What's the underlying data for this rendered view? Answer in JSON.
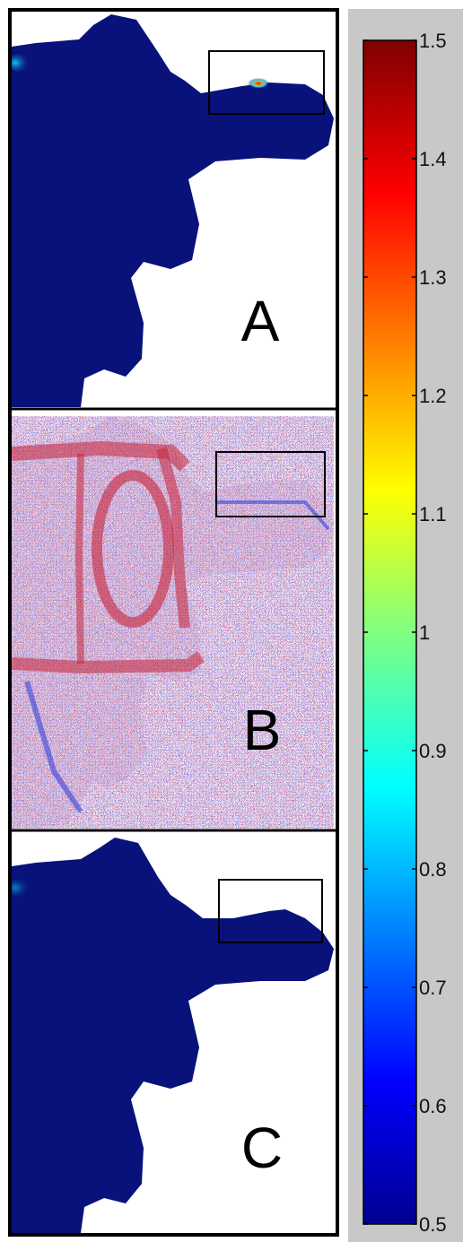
{
  "panels": [
    {
      "label": "A",
      "mode": "solid"
    },
    {
      "label": "B",
      "mode": "points"
    },
    {
      "label": "C",
      "mode": "solid"
    }
  ],
  "colorbar": {
    "min": 0.5,
    "max": 1.5,
    "colormap": "jet",
    "ticks": [
      "1.5",
      "1.4",
      "1.3",
      "1.2",
      "1.1",
      "1",
      "0.9",
      "0.8",
      "0.7",
      "0.6",
      "0.5"
    ],
    "background_color": "#c8c8c8"
  },
  "colors": {
    "surface": "#08127a",
    "hotspot": "#d83a1a",
    "points_red": "#d8262a",
    "points_blue": "#2b3ad8"
  }
}
